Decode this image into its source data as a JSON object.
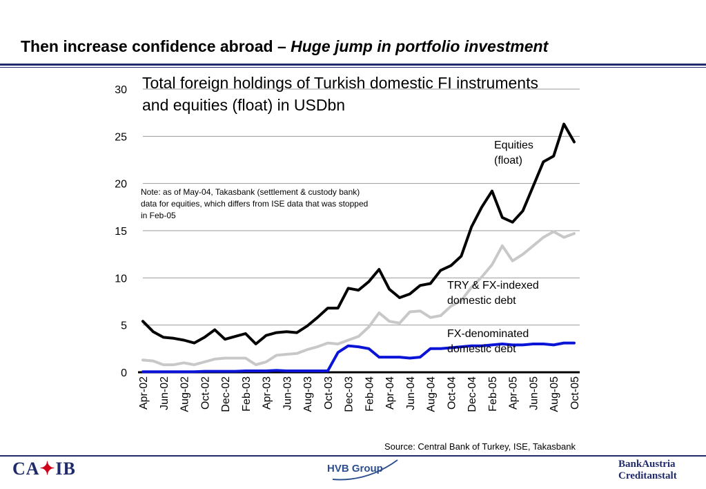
{
  "header": {
    "title_plain": "Then increase confidence abroad – ",
    "title_italic": "Huge jump in portfolio investment"
  },
  "footer": {
    "source": "Source: Central Bank of Turkey, ISE, Takasbank",
    "logo_left": "CA•IB",
    "logo_left_a": "CA",
    "logo_left_b": "IB",
    "logo_center": "HVB Group",
    "logo_right_line1": "BankAustria",
    "logo_right_line2": "Creditanstalt"
  },
  "colors": {
    "equities": "#000000",
    "try_fx_indexed": "#c8c8c8",
    "fx_denominated": "#0a14d6",
    "brand_navy": "#1f2a6b",
    "brand_red": "#d0021b"
  },
  "chart_data": {
    "type": "line",
    "title": "Total foreign holdings of Turkish domestic FI instruments and equities (float) in USDbn",
    "note": "Note: as of May-04, Takasbank (settlement & custody bank) data for equities, which differs from ISE data that was stopped in Feb-05",
    "xlabel": "",
    "ylabel": "",
    "ylim": [
      0,
      30
    ],
    "yticks": [
      0,
      5,
      10,
      15,
      20,
      25,
      30
    ],
    "grid": "horizontal",
    "x": [
      "Apr-02",
      "May-02",
      "Jun-02",
      "Jul-02",
      "Aug-02",
      "Sep-02",
      "Oct-02",
      "Nov-02",
      "Dec-02",
      "Jan-03",
      "Feb-03",
      "Mar-03",
      "Apr-03",
      "May-03",
      "Jun-03",
      "Jul-03",
      "Aug-03",
      "Sep-03",
      "Oct-03",
      "Nov-03",
      "Dec-03",
      "Jan-04",
      "Feb-04",
      "Mar-04",
      "Apr-04",
      "May-04",
      "Jun-04",
      "Jul-04",
      "Aug-04",
      "Sep-04",
      "Oct-04",
      "Nov-04",
      "Dec-04",
      "Jan-05",
      "Feb-05",
      "Mar-05",
      "Apr-05",
      "May-05",
      "Jun-05",
      "Jul-05",
      "Aug-05",
      "Sep-05",
      "Oct-05"
    ],
    "xtick_labels": [
      "Apr-02",
      "Jun-02",
      "Aug-02",
      "Oct-02",
      "Dec-02",
      "Feb-03",
      "Apr-03",
      "Jun-03",
      "Aug-03",
      "Oct-03",
      "Dec-03",
      "Feb-04",
      "Apr-04",
      "Jun-04",
      "Aug-04",
      "Oct-04",
      "Dec-04",
      "Feb-05",
      "Apr-05",
      "Jun-05",
      "Aug-05",
      "Oct-05"
    ],
    "series": [
      {
        "name": "Equities (float)",
        "label_lines": [
          "Equities",
          "(float)"
        ],
        "values": [
          5.4,
          4.3,
          3.7,
          3.6,
          3.4,
          3.1,
          3.7,
          4.5,
          3.5,
          3.8,
          4.1,
          3.0,
          3.9,
          4.2,
          4.3,
          4.2,
          4.9,
          5.8,
          6.8,
          6.8,
          8.9,
          8.7,
          9.6,
          10.9,
          8.8,
          7.9,
          8.3,
          9.2,
          9.4,
          10.8,
          11.3,
          12.3,
          15.4,
          17.5,
          19.2,
          16.4,
          15.9,
          17.1,
          19.7,
          22.3,
          22.9,
          26.3,
          24.4
        ]
      },
      {
        "name": "TRY & FX-indexed domestic debt",
        "label_lines": [
          "TRY & FX-indexed",
          "domestic debt"
        ],
        "values": [
          1.3,
          1.2,
          0.8,
          0.8,
          1.0,
          0.8,
          1.1,
          1.4,
          1.5,
          1.5,
          1.5,
          0.8,
          1.1,
          1.8,
          1.9,
          2.0,
          2.4,
          2.7,
          3.1,
          3.0,
          3.4,
          3.8,
          4.8,
          6.3,
          5.4,
          5.2,
          6.4,
          6.5,
          5.8,
          6.0,
          7.0,
          7.6,
          9.0,
          10.1,
          11.4,
          13.4,
          11.8,
          12.5,
          13.4,
          14.3,
          14.9,
          14.3,
          14.7
        ]
      },
      {
        "name": "FX-denominated domestic debt",
        "label_lines": [
          "FX-denominated",
          "domestic debt"
        ],
        "values": [
          0.05,
          0.05,
          0.05,
          0.05,
          0.05,
          0.05,
          0.1,
          0.1,
          0.1,
          0.1,
          0.15,
          0.15,
          0.15,
          0.2,
          0.15,
          0.15,
          0.15,
          0.15,
          0.15,
          2.1,
          2.8,
          2.7,
          2.5,
          1.6,
          1.6,
          1.6,
          1.5,
          1.6,
          2.5,
          2.5,
          2.6,
          2.7,
          2.8,
          2.8,
          2.9,
          3.0,
          2.9,
          2.9,
          3.0,
          3.0,
          2.9,
          3.1,
          3.1
        ]
      }
    ]
  }
}
